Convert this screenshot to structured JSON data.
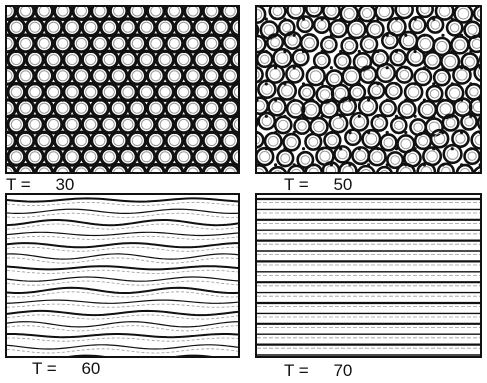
{
  "panels": [
    {
      "id": "t30",
      "label": "T =",
      "value": "30",
      "pattern": "hexagonal-cells"
    },
    {
      "id": "t50",
      "label": "T =",
      "value": "50",
      "pattern": "distorted-cells"
    },
    {
      "id": "t60",
      "label": "T =",
      "value": "60",
      "pattern": "wavy-stripes"
    },
    {
      "id": "t70",
      "label": "T =",
      "value": "70",
      "pattern": "straight-stripes"
    }
  ],
  "colors": {
    "ink": "#111111",
    "background": "#ffffff",
    "halo": "#9a9a9a"
  }
}
